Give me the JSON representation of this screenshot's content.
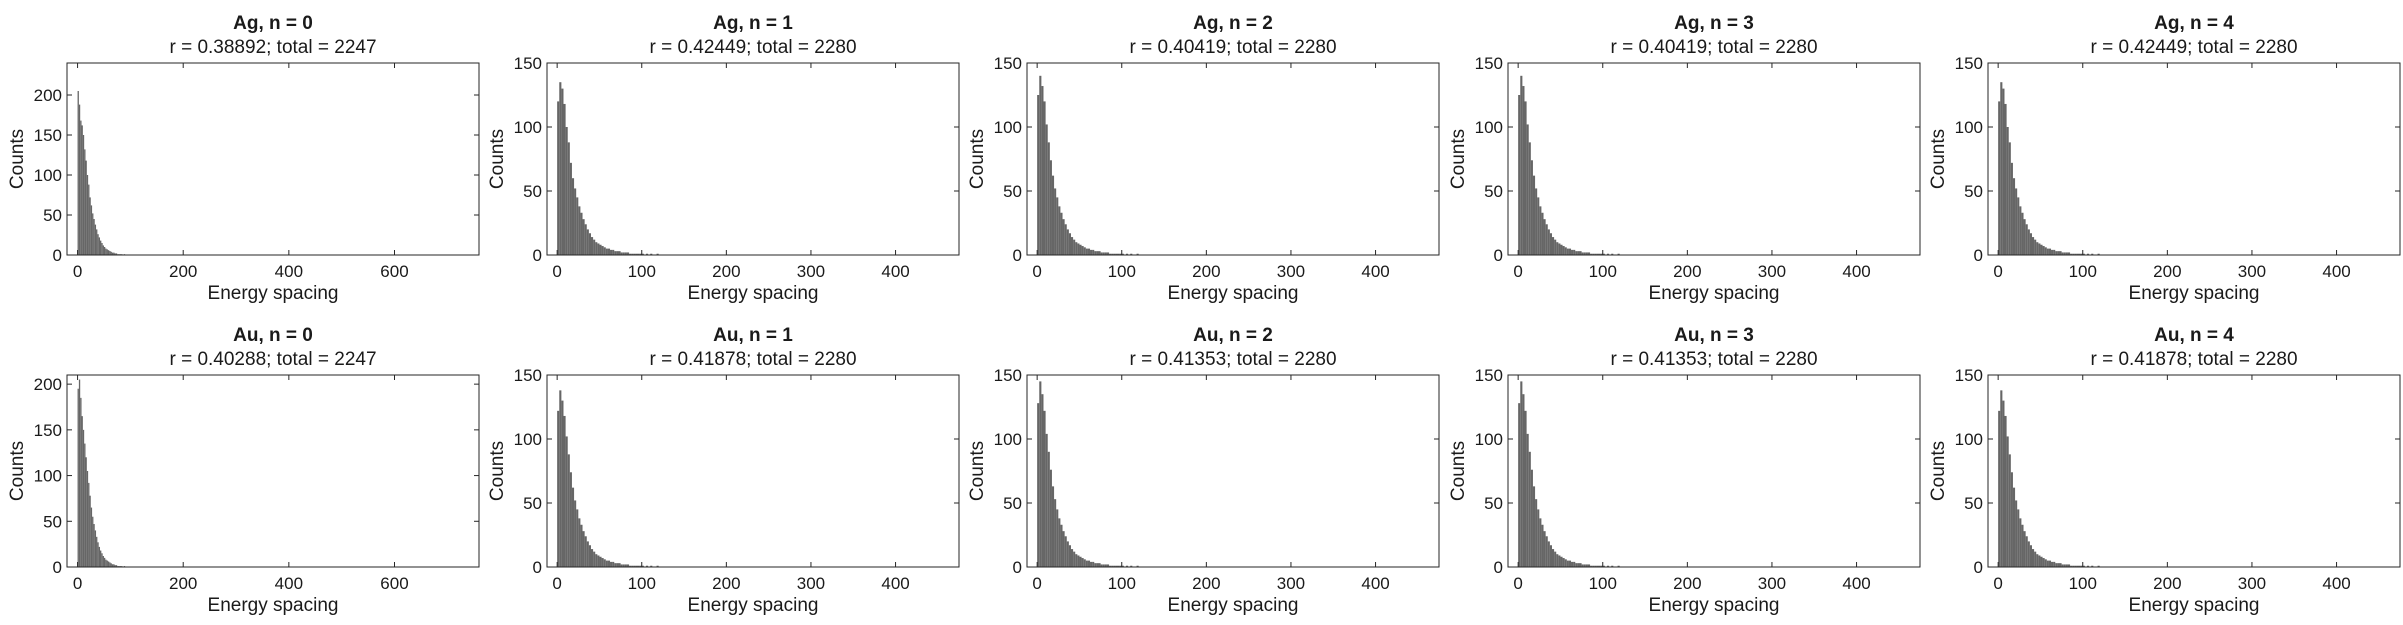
{
  "style": {
    "bar_color": "#666666",
    "axis_color": "#262626",
    "background": "#ffffff"
  },
  "chart_data": [
    {
      "type": "bar",
      "title": "Ag, n = 0",
      "subtitle": "r = 0.38892; total = 2247",
      "xlabel": "Energy spacing",
      "ylabel": "Counts",
      "xlim": [
        -20,
        760
      ],
      "ylim": [
        0,
        240
      ],
      "xticks": [
        0,
        200,
        400,
        600
      ],
      "yticks": [
        0,
        50,
        100,
        150,
        200
      ],
      "bin_width": 2.5,
      "values": [
        205,
        188,
        168,
        162,
        150,
        132,
        118,
        100,
        88,
        72,
        62,
        52,
        45,
        38,
        32,
        26,
        22,
        18,
        15,
        12,
        10,
        8,
        7,
        6,
        5,
        4,
        3,
        3,
        2,
        2,
        1,
        1,
        1,
        1,
        0,
        1
      ]
    },
    {
      "type": "bar",
      "title": "Ag, n = 1",
      "subtitle": "r = 0.42449; total = 2280",
      "xlabel": "Energy spacing",
      "ylabel": "Counts",
      "xlim": [
        -12,
        475
      ],
      "ylim": [
        0,
        150
      ],
      "xticks": [
        0,
        100,
        200,
        300,
        400
      ],
      "yticks": [
        0,
        50,
        100,
        150
      ],
      "bin_width": 2.5,
      "values": [
        120,
        135,
        130,
        118,
        100,
        88,
        72,
        60,
        52,
        45,
        38,
        33,
        28,
        24,
        20,
        17,
        14,
        12,
        10,
        9,
        8,
        7,
        6,
        5,
        5,
        4,
        4,
        3,
        3,
        3,
        2,
        2,
        2,
        2,
        1,
        1,
        1,
        1,
        1,
        1,
        1,
        0,
        1,
        0,
        1,
        0,
        0,
        1
      ]
    },
    {
      "type": "bar",
      "title": "Ag, n = 2",
      "subtitle": "r = 0.40419; total = 2280",
      "xlabel": "Energy spacing",
      "ylabel": "Counts",
      "xlim": [
        -12,
        475
      ],
      "ylim": [
        0,
        150
      ],
      "xticks": [
        0,
        100,
        200,
        300,
        400
      ],
      "yticks": [
        0,
        50,
        100,
        150
      ],
      "bin_width": 2.5,
      "values": [
        125,
        140,
        132,
        120,
        102,
        88,
        74,
        62,
        52,
        45,
        38,
        33,
        28,
        24,
        20,
        17,
        14,
        12,
        10,
        9,
        8,
        7,
        6,
        5,
        5,
        4,
        4,
        3,
        3,
        3,
        2,
        2,
        2,
        2,
        1,
        1,
        1,
        1,
        1,
        1,
        1,
        0,
        1,
        0,
        1,
        0,
        0,
        1
      ]
    },
    {
      "type": "bar",
      "title": "Ag, n = 3",
      "subtitle": "r = 0.40419; total = 2280",
      "xlabel": "Energy spacing",
      "ylabel": "Counts",
      "xlim": [
        -12,
        475
      ],
      "ylim": [
        0,
        150
      ],
      "xticks": [
        0,
        100,
        200,
        300,
        400
      ],
      "yticks": [
        0,
        50,
        100,
        150
      ],
      "bin_width": 2.5,
      "values": [
        125,
        140,
        132,
        120,
        102,
        88,
        74,
        62,
        52,
        45,
        38,
        33,
        28,
        24,
        20,
        17,
        14,
        12,
        10,
        9,
        8,
        7,
        6,
        5,
        5,
        4,
        4,
        3,
        3,
        3,
        2,
        2,
        2,
        2,
        1,
        1,
        1,
        1,
        1,
        1,
        1,
        0,
        1,
        0,
        1,
        0,
        0,
        1
      ]
    },
    {
      "type": "bar",
      "title": "Ag, n = 4",
      "subtitle": "r = 0.42449; total = 2280",
      "xlabel": "Energy spacing",
      "ylabel": "Counts",
      "xlim": [
        -12,
        475
      ],
      "ylim": [
        0,
        150
      ],
      "xticks": [
        0,
        100,
        200,
        300,
        400
      ],
      "yticks": [
        0,
        50,
        100,
        150
      ],
      "bin_width": 2.5,
      "values": [
        120,
        135,
        130,
        118,
        100,
        88,
        72,
        60,
        52,
        45,
        38,
        33,
        28,
        24,
        20,
        17,
        14,
        12,
        10,
        9,
        8,
        7,
        6,
        5,
        5,
        4,
        4,
        3,
        3,
        3,
        2,
        2,
        2,
        2,
        1,
        1,
        1,
        1,
        1,
        1,
        1,
        0,
        1,
        0,
        1,
        0,
        0,
        1
      ]
    },
    {
      "type": "bar",
      "title": "Au, n = 0",
      "subtitle": "r = 0.40288; total = 2247",
      "xlabel": "Energy spacing",
      "ylabel": "Counts",
      "xlim": [
        -20,
        760
      ],
      "ylim": [
        0,
        210
      ],
      "xticks": [
        0,
        200,
        400,
        600
      ],
      "yticks": [
        0,
        50,
        100,
        150,
        200
      ],
      "bin_width": 2.5,
      "values": [
        195,
        205,
        185,
        165,
        150,
        135,
        120,
        105,
        92,
        78,
        65,
        55,
        47,
        40,
        33,
        27,
        22,
        18,
        15,
        12,
        10,
        8,
        7,
        6,
        5,
        4,
        3,
        3,
        2,
        2,
        1,
        1,
        1,
        1,
        0,
        1
      ]
    },
    {
      "type": "bar",
      "title": "Au, n = 1",
      "subtitle": "r = 0.41878; total = 2280",
      "xlabel": "Energy spacing",
      "ylabel": "Counts",
      "xlim": [
        -12,
        475
      ],
      "ylim": [
        0,
        150
      ],
      "xticks": [
        0,
        100,
        200,
        300,
        400
      ],
      "yticks": [
        0,
        50,
        100,
        150
      ],
      "bin_width": 2.5,
      "values": [
        122,
        138,
        130,
        118,
        102,
        88,
        74,
        62,
        52,
        45,
        38,
        33,
        28,
        24,
        20,
        17,
        14,
        12,
        10,
        9,
        8,
        7,
        6,
        5,
        5,
        4,
        4,
        3,
        3,
        3,
        2,
        2,
        2,
        2,
        1,
        1,
        1,
        1,
        1,
        1,
        1,
        0,
        1,
        0,
        1,
        0,
        0,
        1
      ]
    },
    {
      "type": "bar",
      "title": "Au, n = 2",
      "subtitle": "r = 0.41353; total = 2280",
      "xlabel": "Energy spacing",
      "ylabel": "Counts",
      "xlim": [
        -12,
        475
      ],
      "ylim": [
        0,
        150
      ],
      "xticks": [
        0,
        100,
        200,
        300,
        400
      ],
      "yticks": [
        0,
        50,
        100,
        150
      ],
      "bin_width": 2.5,
      "values": [
        128,
        145,
        135,
        122,
        104,
        90,
        76,
        63,
        53,
        45,
        38,
        33,
        28,
        24,
        20,
        17,
        14,
        12,
        10,
        9,
        8,
        7,
        6,
        5,
        5,
        4,
        4,
        3,
        3,
        3,
        2,
        2,
        2,
        2,
        1,
        1,
        1,
        1,
        1,
        1,
        1,
        0,
        1,
        0,
        1,
        0,
        0,
        1
      ]
    },
    {
      "type": "bar",
      "title": "Au, n = 3",
      "subtitle": "r = 0.41353; total = 2280",
      "xlabel": "Energy spacing",
      "ylabel": "Counts",
      "xlim": [
        -12,
        475
      ],
      "ylim": [
        0,
        150
      ],
      "xticks": [
        0,
        100,
        200,
        300,
        400
      ],
      "yticks": [
        0,
        50,
        100,
        150
      ],
      "bin_width": 2.5,
      "values": [
        128,
        145,
        135,
        122,
        104,
        90,
        76,
        63,
        53,
        45,
        38,
        33,
        28,
        24,
        20,
        17,
        14,
        12,
        10,
        9,
        8,
        7,
        6,
        5,
        5,
        4,
        4,
        3,
        3,
        3,
        2,
        2,
        2,
        2,
        1,
        1,
        1,
        1,
        1,
        1,
        1,
        0,
        1,
        0,
        1,
        0,
        0,
        1
      ]
    },
    {
      "type": "bar",
      "title": "Au, n = 4",
      "subtitle": "r = 0.41878; total = 2280",
      "xlabel": "Energy spacing",
      "ylabel": "Counts",
      "xlim": [
        -12,
        475
      ],
      "ylim": [
        0,
        150
      ],
      "xticks": [
        0,
        100,
        200,
        300,
        400
      ],
      "yticks": [
        0,
        50,
        100,
        150
      ],
      "bin_width": 2.5,
      "values": [
        122,
        138,
        130,
        118,
        102,
        88,
        74,
        62,
        52,
        45,
        38,
        33,
        28,
        24,
        20,
        17,
        14,
        12,
        10,
        9,
        8,
        7,
        6,
        5,
        5,
        4,
        4,
        3,
        3,
        3,
        2,
        2,
        2,
        2,
        1,
        1,
        1,
        1,
        1,
        1,
        1,
        0,
        1,
        0,
        1,
        0,
        0,
        1
      ]
    }
  ]
}
